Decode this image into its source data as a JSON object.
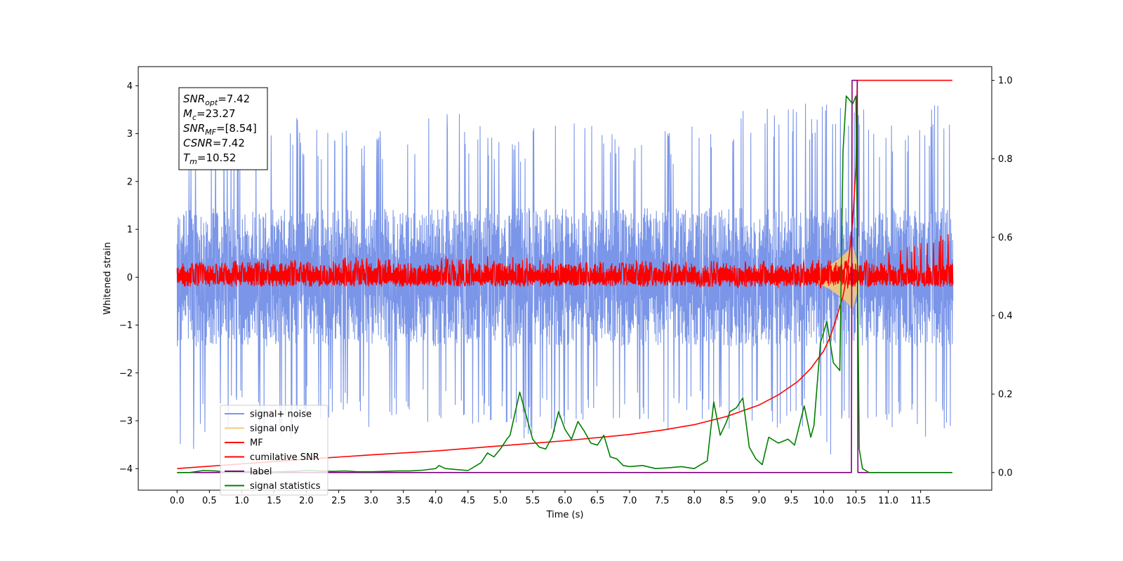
{
  "chart_data": {
    "type": "line",
    "xlabel": "Time (s)",
    "ylabel": "Whitened strain",
    "ylabel_right": "",
    "xlim": [
      -0.6,
      12.6
    ],
    "ylim": [
      -4.45,
      4.4
    ],
    "ylim_right": [
      -0.045,
      1.035
    ],
    "x_ticks": [
      0.0,
      0.5,
      1.0,
      1.5,
      2.0,
      2.5,
      3.0,
      3.5,
      4.0,
      4.5,
      5.0,
      5.5,
      6.0,
      6.5,
      7.0,
      7.5,
      8.0,
      8.5,
      9.0,
      9.5,
      10.0,
      10.5,
      11.0,
      11.5
    ],
    "x_tick_labels": [
      "0.0",
      "0.5",
      "1.0",
      "1.5",
      "2.0",
      "2.5",
      "3.0",
      "3.5",
      "4.0",
      "4.5",
      "5.0",
      "5.5",
      "6.0",
      "6.5",
      "7.0",
      "7.5",
      "8.0",
      "8.5",
      "9.0",
      "9.5",
      "10.0",
      "10.5",
      "11.0",
      "11.5"
    ],
    "y_ticks": [
      -4,
      -3,
      -2,
      -1,
      0,
      1,
      2,
      3,
      4
    ],
    "y_tick_labels": [
      "−4",
      "−3",
      "−2",
      "−1",
      "0",
      "1",
      "2",
      "3",
      "4"
    ],
    "y_ticks_right": [
      0.0,
      0.2,
      0.4,
      0.6,
      0.8,
      1.0
    ],
    "y_tick_labels_right": [
      "0.0",
      "0.2",
      "0.4",
      "0.6",
      "0.8",
      "1.0"
    ],
    "grid": false,
    "legend_position": "lower-left",
    "annotation": {
      "position": "top-left",
      "lines": [
        {
          "base": "SNR",
          "sub": "opt",
          "value": "=7.42"
        },
        {
          "base": "M",
          "sub": "c",
          "value": "=23.27"
        },
        {
          "base": "SNR",
          "sub": "MF",
          "value": "=[8.54]"
        },
        {
          "base": "CSNR",
          "sub": "",
          "value": "=7.42"
        },
        {
          "base": "T",
          "sub": "m",
          "value": "=10.52"
        }
      ]
    },
    "series": [
      {
        "name": "signal+ noise",
        "axis": "left",
        "color": "#7b96e8",
        "style": "noise-band",
        "x_range": [
          0.0,
          12.0
        ],
        "upper_envelope": [
          [
            0.0,
            1.4
          ],
          [
            0.3,
            3.2
          ],
          [
            1.0,
            3.3
          ],
          [
            1.5,
            3.6
          ],
          [
            2.0,
            3.3
          ],
          [
            3.0,
            3.0
          ],
          [
            4.0,
            3.6
          ],
          [
            5.0,
            3.1
          ],
          [
            5.9,
            3.4
          ],
          [
            6.5,
            3.2
          ],
          [
            7.5,
            3.1
          ],
          [
            8.5,
            3.3
          ],
          [
            8.9,
            4.0
          ],
          [
            9.5,
            3.6
          ],
          [
            10.3,
            4.1
          ],
          [
            10.5,
            3.7
          ],
          [
            11.0,
            3.2
          ],
          [
            11.99,
            3.9
          ]
        ],
        "lower_envelope": [
          [
            0.0,
            -4.1
          ],
          [
            0.5,
            -3.2
          ],
          [
            1.0,
            -3.1
          ],
          [
            1.7,
            -3.7
          ],
          [
            2.0,
            -3.0
          ],
          [
            3.0,
            -3.2
          ],
          [
            4.0,
            -3.1
          ],
          [
            4.5,
            -3.3
          ],
          [
            5.0,
            -3.0
          ],
          [
            5.3,
            -3.4
          ],
          [
            6.0,
            -3.3
          ],
          [
            6.5,
            -2.9
          ],
          [
            7.0,
            -3.1
          ],
          [
            7.5,
            -3.3
          ],
          [
            8.0,
            -3.0
          ],
          [
            8.6,
            -3.2
          ],
          [
            9.0,
            -3.1
          ],
          [
            9.5,
            -3.2
          ],
          [
            10.2,
            -3.8
          ],
          [
            10.5,
            -3.2
          ],
          [
            11.0,
            -3.3
          ],
          [
            11.5,
            -3.5
          ],
          [
            11.99,
            -3.1
          ]
        ],
        "band_level": [
          0.9,
          -0.9
        ]
      },
      {
        "name": "signal only",
        "axis": "left",
        "color": "#f5c97a",
        "style": "chirp",
        "chirp_region": [
          [
            9.8,
            0.05
          ],
          [
            10.1,
            0.25
          ],
          [
            10.3,
            0.45
          ],
          [
            10.45,
            0.65
          ],
          [
            10.52,
            0.3
          ]
        ]
      },
      {
        "name": "MF",
        "axis": "left",
        "color": "#ff0000",
        "style": "noise-band",
        "x_range": [
          0.0,
          12.0
        ],
        "band_level": [
          0.18,
          -0.12
        ],
        "upper_envelope": [
          [
            0.0,
            1.0
          ],
          [
            0.1,
            0.3
          ],
          [
            2.3,
            0.4
          ],
          [
            4.6,
            0.45
          ],
          [
            6.3,
            0.35
          ],
          [
            10.5,
            0.35
          ],
          [
            11.99,
            0.95
          ]
        ],
        "lower_envelope": [
          [
            0.0,
            -0.3
          ],
          [
            0.1,
            -0.15
          ],
          [
            6.0,
            -0.18
          ],
          [
            10.5,
            -0.25
          ],
          [
            11.99,
            -0.15
          ]
        ]
      },
      {
        "name": "cumilative SNR",
        "axis": "right",
        "color": "#ff0000",
        "x": [
          0.0,
          1.0,
          2.0,
          3.0,
          4.0,
          5.0,
          6.0,
          7.0,
          7.5,
          8.0,
          8.5,
          9.0,
          9.3,
          9.6,
          9.8,
          10.0,
          10.1,
          10.2,
          10.3,
          10.35,
          10.4,
          10.45,
          10.5,
          10.52,
          11.0,
          11.5,
          11.99
        ],
        "y": [
          0.01,
          0.022,
          0.034,
          0.045,
          0.055,
          0.068,
          0.081,
          0.097,
          0.108,
          0.122,
          0.143,
          0.172,
          0.198,
          0.232,
          0.265,
          0.31,
          0.345,
          0.395,
          0.45,
          0.495,
          0.56,
          0.64,
          0.78,
          1.0,
          1.0,
          1.0,
          1.0
        ]
      },
      {
        "name": "label",
        "axis": "right",
        "color": "#800080",
        "x": [
          0.0,
          10.43,
          10.44,
          10.52,
          10.53,
          11.99
        ],
        "y": [
          0.0,
          0.0,
          1.0,
          1.0,
          0.0,
          0.0
        ]
      },
      {
        "name": "signal statistics",
        "axis": "right",
        "color": "#008000",
        "x": [
          0.0,
          0.2,
          0.4,
          0.6,
          0.8,
          1.0,
          1.2,
          1.4,
          1.6,
          1.8,
          2.0,
          2.2,
          2.4,
          2.6,
          2.8,
          3.0,
          3.2,
          3.4,
          3.6,
          3.8,
          4.0,
          4.05,
          4.15,
          4.3,
          4.5,
          4.7,
          4.8,
          4.9,
          5.0,
          5.1,
          5.15,
          5.3,
          5.4,
          5.5,
          5.6,
          5.7,
          5.8,
          5.9,
          6.0,
          6.1,
          6.2,
          6.3,
          6.4,
          6.5,
          6.6,
          6.7,
          6.8,
          6.9,
          7.0,
          7.2,
          7.4,
          7.6,
          7.8,
          8.0,
          8.2,
          8.3,
          8.4,
          8.5,
          8.55,
          8.65,
          8.75,
          8.85,
          8.95,
          9.05,
          9.15,
          9.3,
          9.45,
          9.55,
          9.7,
          9.8,
          9.85,
          9.95,
          10.05,
          10.15,
          10.25,
          10.3,
          10.35,
          10.45,
          10.5,
          10.55,
          10.6,
          10.65,
          10.7,
          10.8,
          11.0,
          11.5,
          11.99
        ],
        "y": [
          0.0,
          0.0,
          0.005,
          0.004,
          0.0,
          0.002,
          0.003,
          0.001,
          0.002,
          0.003,
          0.005,
          0.004,
          0.003,
          0.004,
          0.002,
          0.002,
          0.003,
          0.004,
          0.004,
          0.006,
          0.01,
          0.018,
          0.01,
          0.008,
          0.005,
          0.025,
          0.05,
          0.04,
          0.06,
          0.085,
          0.095,
          0.205,
          0.145,
          0.085,
          0.065,
          0.06,
          0.09,
          0.155,
          0.11,
          0.085,
          0.13,
          0.105,
          0.075,
          0.07,
          0.095,
          0.04,
          0.035,
          0.018,
          0.015,
          0.018,
          0.01,
          0.012,
          0.015,
          0.01,
          0.03,
          0.18,
          0.095,
          0.13,
          0.155,
          0.165,
          0.19,
          0.065,
          0.035,
          0.02,
          0.09,
          0.075,
          0.085,
          0.07,
          0.17,
          0.09,
          0.12,
          0.33,
          0.385,
          0.28,
          0.26,
          0.82,
          0.96,
          0.94,
          0.96,
          0.06,
          0.01,
          0.005,
          0.0,
          0.0,
          0.0,
          0.0,
          0.0
        ]
      }
    ]
  }
}
